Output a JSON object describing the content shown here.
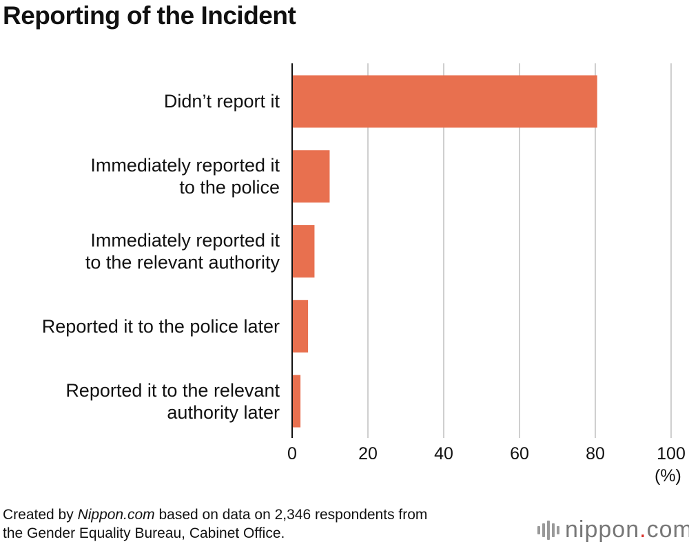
{
  "title": "Reporting of the Incident",
  "chart_data": {
    "type": "bar",
    "orientation": "horizontal",
    "title": "Reporting of the Incident",
    "categories": [
      [
        "Didn’t report it"
      ],
      [
        "Immediately reported it",
        "to the police"
      ],
      [
        "Immediately reported it",
        "to the relevant authority"
      ],
      [
        "Reported it to the police later"
      ],
      [
        "Reported it to the relevant",
        "authority later"
      ]
    ],
    "values": [
      80.5,
      9.9,
      5.9,
      4.2,
      2.2
    ],
    "xlim": [
      0,
      100
    ],
    "xticks": [
      0,
      20,
      40,
      60,
      80,
      100
    ],
    "xlabel": "(%)",
    "grid": true,
    "bar_color": "#e8704f"
  },
  "footnote": {
    "prefix": "Created by ",
    "source_name": "Nippon.com",
    "suffix": " based on data on 2,346 respondents from",
    "line2": "the Gender Equality Bureau, Cabinet Office."
  },
  "logo": {
    "text": "nippon",
    "dot": ".",
    "tld": "com"
  }
}
